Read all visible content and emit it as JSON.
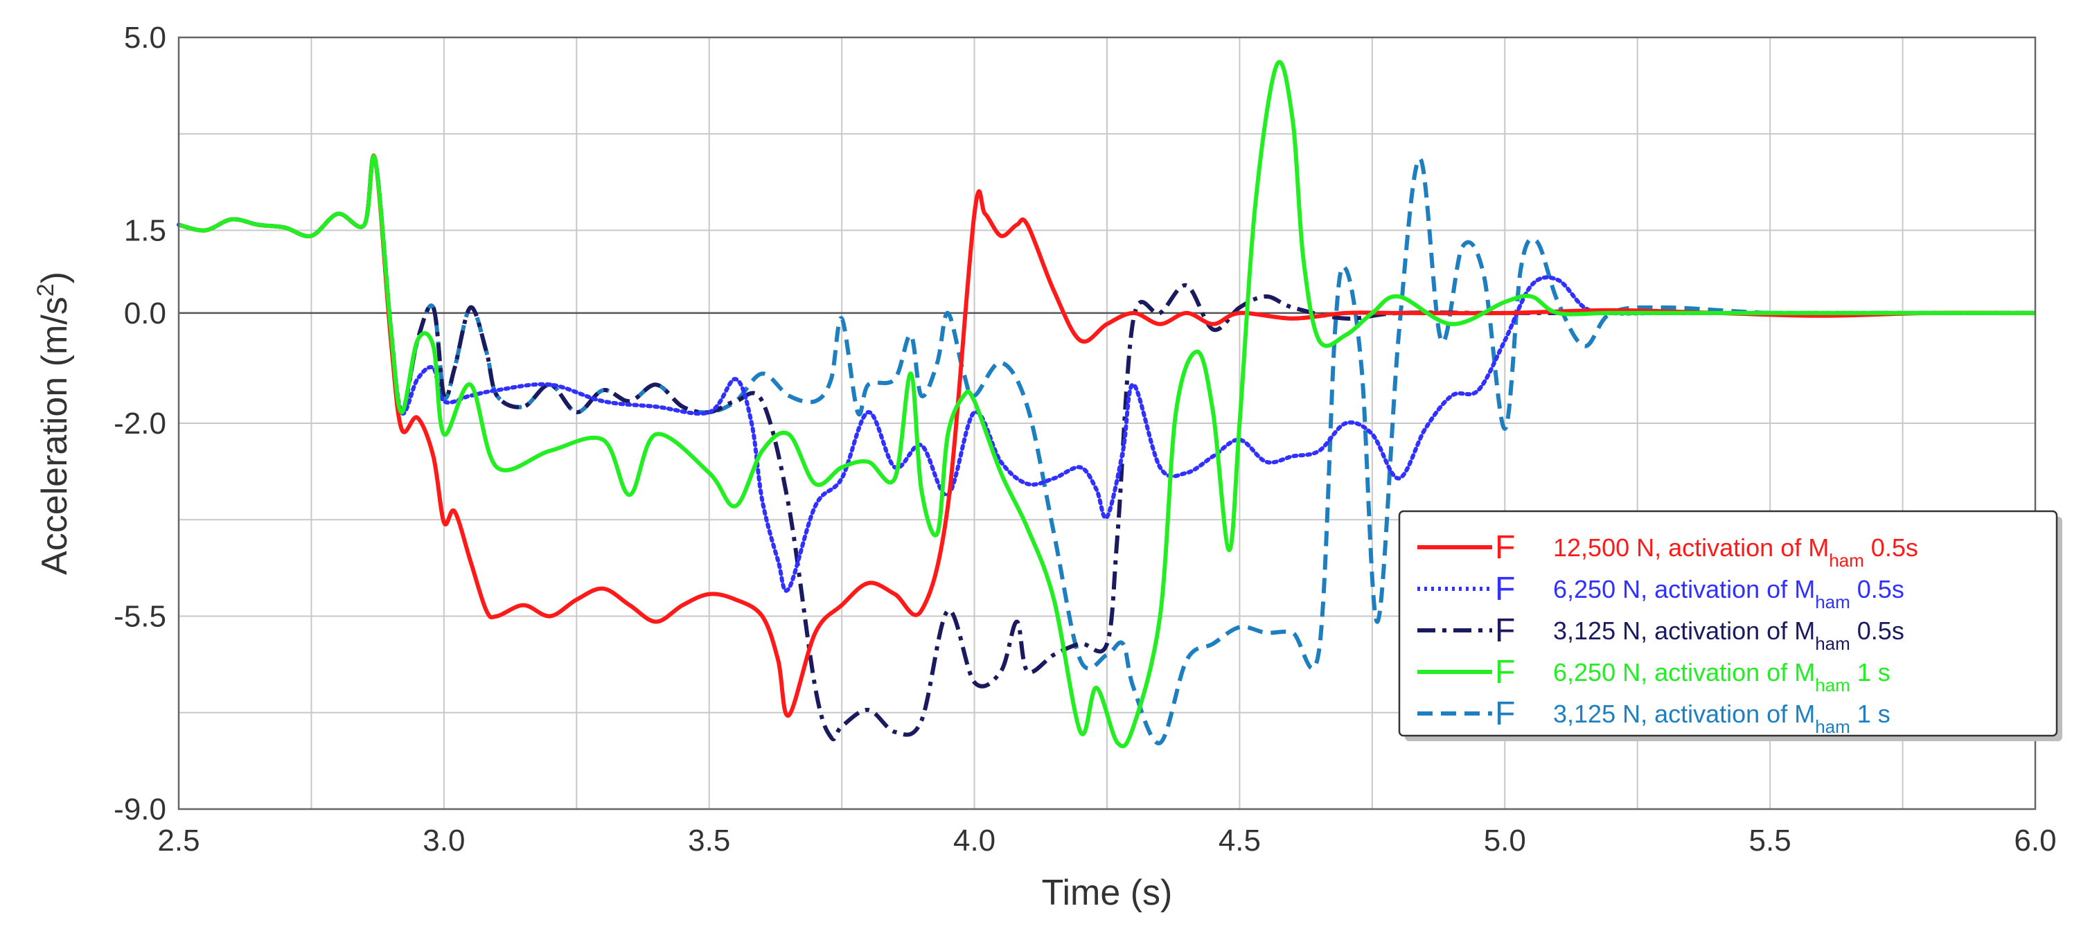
{
  "chart_data": {
    "type": "line",
    "xlabel": "Time (s)",
    "ylabel_main": "Acceleration (m/s",
    "ylabel_sup": "2",
    "ylabel_tail": ")",
    "xlim": [
      2.5,
      6.0
    ],
    "ylim": [
      -9.0,
      5.0
    ],
    "x_ticks": [
      2.5,
      3.0,
      3.5,
      4.0,
      4.5,
      5.0,
      5.5,
      6.0
    ],
    "x_tick_labels": [
      "2.5",
      "3.0",
      "3.5",
      "4.0",
      "4.5",
      "5.0",
      "5.5",
      "6.0"
    ],
    "y_ticks": [
      5.0,
      1.5,
      0.0,
      -2.0,
      -5.5,
      -9.0
    ],
    "y_tick_labels": [
      "5.0",
      "1.5",
      "0.0",
      "-2.0",
      "-5.5",
      "-9.0"
    ],
    "x_gridlines": [
      2.5,
      2.75,
      3.0,
      3.25,
      3.5,
      3.75,
      4.0,
      4.25,
      4.5,
      4.75,
      5.0,
      5.25,
      5.5,
      5.75,
      6.0
    ],
    "y_gridlines": [
      5.0,
      3.25,
      1.5,
      0.0,
      -2.0,
      -3.75,
      -5.5,
      -7.25,
      -9.0
    ],
    "legend_position": "lower-right",
    "series": [
      {
        "name": "F 12,500 N, activation of Mham 0.5s",
        "legend_prefix": "F",
        "legend_text": "12,500 N, activation of M",
        "legend_sub": "ham",
        "legend_suffix": " 0.5s",
        "color": "#ff1a1a",
        "dash": "solid",
        "x": [
          2.5,
          2.55,
          2.6,
          2.65,
          2.7,
          2.75,
          2.8,
          2.85,
          2.87,
          2.9,
          2.92,
          2.95,
          2.98,
          3.0,
          3.02,
          3.05,
          3.08,
          3.1,
          3.15,
          3.2,
          3.25,
          3.3,
          3.35,
          3.4,
          3.45,
          3.5,
          3.55,
          3.6,
          3.63,
          3.65,
          3.7,
          3.75,
          3.8,
          3.85,
          3.9,
          3.95,
          4.0,
          4.02,
          4.05,
          4.08,
          4.1,
          4.15,
          4.2,
          4.25,
          4.3,
          4.35,
          4.4,
          4.45,
          4.5,
          4.6,
          4.7,
          4.8,
          5.0,
          5.2,
          5.4,
          5.6,
          5.8,
          6.0
        ],
        "y": [
          1.6,
          1.5,
          1.7,
          1.6,
          1.55,
          1.4,
          1.8,
          1.6,
          2.8,
          -0.5,
          -2.1,
          -1.9,
          -2.6,
          -3.8,
          -3.6,
          -4.5,
          -5.4,
          -5.5,
          -5.3,
          -5.5,
          -5.2,
          -5.0,
          -5.3,
          -5.6,
          -5.3,
          -5.1,
          -5.2,
          -5.5,
          -6.3,
          -7.3,
          -5.8,
          -5.3,
          -4.9,
          -5.1,
          -5.4,
          -3.5,
          1.8,
          1.8,
          1.4,
          1.6,
          1.6,
          0.4,
          -0.5,
          -0.2,
          0.0,
          -0.2,
          0.0,
          -0.2,
          0.0,
          -0.1,
          0.0,
          0.0,
          0.0,
          0.05,
          0.0,
          -0.05,
          0.0,
          0.0
        ]
      },
      {
        "name": "F 6,250 N, activation of Mham 0.5s",
        "legend_prefix": "F",
        "legend_text": "6,250 N, activation of M",
        "legend_sub": "ham",
        "legend_suffix": " 0.5s",
        "color": "#3030ff",
        "dash": "dotted",
        "x": [
          2.5,
          2.55,
          2.6,
          2.65,
          2.7,
          2.75,
          2.8,
          2.85,
          2.87,
          2.9,
          2.92,
          2.95,
          2.98,
          3.0,
          3.05,
          3.1,
          3.2,
          3.3,
          3.4,
          3.5,
          3.55,
          3.58,
          3.6,
          3.63,
          3.65,
          3.7,
          3.75,
          3.8,
          3.85,
          3.9,
          3.95,
          4.0,
          4.05,
          4.1,
          4.15,
          4.2,
          4.23,
          4.25,
          4.28,
          4.3,
          4.35,
          4.4,
          4.45,
          4.5,
          4.55,
          4.6,
          4.65,
          4.7,
          4.75,
          4.8,
          4.85,
          4.9,
          4.95,
          5.0,
          5.05,
          5.1,
          5.15,
          5.2,
          5.3,
          5.5,
          5.7,
          5.9,
          6.0
        ],
        "y": [
          1.6,
          1.5,
          1.7,
          1.6,
          1.55,
          1.4,
          1.8,
          1.6,
          2.8,
          -0.3,
          -1.8,
          -1.2,
          -1.0,
          -1.6,
          -1.5,
          -1.4,
          -1.3,
          -1.6,
          -1.7,
          -1.8,
          -1.2,
          -2.0,
          -3.4,
          -4.5,
          -5.0,
          -3.5,
          -3.0,
          -1.8,
          -2.8,
          -2.4,
          -3.3,
          -1.8,
          -2.7,
          -3.1,
          -3.0,
          -2.8,
          -3.2,
          -3.7,
          -2.5,
          -1.3,
          -2.8,
          -2.9,
          -2.6,
          -2.3,
          -2.7,
          -2.6,
          -2.5,
          -2.0,
          -2.2,
          -3.0,
          -2.1,
          -1.5,
          -1.4,
          -0.5,
          0.5,
          0.6,
          0.1,
          0.0,
          0.0,
          0.0,
          0.0,
          0.0,
          0.0
        ]
      },
      {
        "name": "F 3,125 N, activation of Mham 0.5s",
        "legend_prefix": "F",
        "legend_text": "3,125 N, activation of M",
        "legend_sub": "ham",
        "legend_suffix": " 0.5s",
        "color": "#1a1a5e",
        "dash": "dashdot",
        "x": [
          2.5,
          2.55,
          2.6,
          2.65,
          2.7,
          2.75,
          2.8,
          2.85,
          2.87,
          2.9,
          2.92,
          2.95,
          2.98,
          3.0,
          3.02,
          3.05,
          3.08,
          3.1,
          3.15,
          3.2,
          3.25,
          3.3,
          3.35,
          3.4,
          3.45,
          3.5,
          3.55,
          3.6,
          3.65,
          3.7,
          3.73,
          3.75,
          3.8,
          3.85,
          3.9,
          3.95,
          4.0,
          4.05,
          4.08,
          4.1,
          4.15,
          4.2,
          4.25,
          4.27,
          4.3,
          4.35,
          4.4,
          4.45,
          4.5,
          4.55,
          4.6,
          4.7,
          4.8,
          5.0,
          5.2,
          5.4,
          5.6,
          5.8,
          6.0
        ],
        "y": [
          1.6,
          1.5,
          1.7,
          1.6,
          1.55,
          1.4,
          1.8,
          1.6,
          2.8,
          -0.3,
          -1.8,
          -0.5,
          0.1,
          -1.5,
          -1.0,
          0.1,
          -0.7,
          -1.5,
          -1.7,
          -1.3,
          -1.8,
          -1.4,
          -1.6,
          -1.3,
          -1.7,
          -1.8,
          -1.6,
          -1.6,
          -3.5,
          -6.8,
          -7.7,
          -7.5,
          -7.2,
          -7.6,
          -7.4,
          -5.4,
          -6.7,
          -6.5,
          -5.6,
          -6.5,
          -6.2,
          -6.0,
          -6.0,
          -4.0,
          -0.1,
          0.0,
          0.5,
          -0.3,
          0.1,
          0.3,
          0.1,
          -0.1,
          0.0,
          0.0,
          0.0,
          0.0,
          0.0,
          0.0,
          0.0
        ]
      },
      {
        "name": "F 6,250 N, activation of Mham 1 s",
        "legend_prefix": "F",
        "legend_text": "6,250 N, activation of M",
        "legend_sub": "ham",
        "legend_suffix": "  1 s",
        "color": "#22ee22",
        "dash": "solid",
        "x": [
          2.5,
          2.55,
          2.6,
          2.65,
          2.7,
          2.75,
          2.8,
          2.85,
          2.87,
          2.9,
          2.92,
          2.95,
          2.98,
          3.0,
          3.05,
          3.1,
          3.2,
          3.3,
          3.35,
          3.4,
          3.5,
          3.55,
          3.6,
          3.65,
          3.7,
          3.75,
          3.8,
          3.85,
          3.88,
          3.9,
          3.93,
          3.95,
          3.98,
          4.0,
          4.05,
          4.1,
          4.15,
          4.2,
          4.23,
          4.27,
          4.3,
          4.35,
          4.38,
          4.42,
          4.45,
          4.48,
          4.5,
          4.53,
          4.57,
          4.6,
          4.62,
          4.65,
          4.7,
          4.75,
          4.8,
          4.9,
          5.0,
          5.05,
          5.1,
          5.2,
          5.4,
          5.6,
          5.8,
          6.0
        ],
        "y": [
          1.6,
          1.5,
          1.7,
          1.6,
          1.55,
          1.4,
          1.8,
          1.6,
          2.8,
          -0.3,
          -1.8,
          -0.5,
          -0.6,
          -2.2,
          -1.3,
          -2.8,
          -2.5,
          -2.3,
          -3.3,
          -2.2,
          -2.9,
          -3.5,
          -2.5,
          -2.2,
          -3.1,
          -2.8,
          -2.7,
          -3.0,
          -1.1,
          -3.2,
          -4.0,
          -2.2,
          -1.5,
          -1.6,
          -2.9,
          -3.9,
          -5.2,
          -7.6,
          -6.8,
          -7.8,
          -7.5,
          -5.5,
          -1.8,
          -0.7,
          -1.8,
          -4.3,
          -2.0,
          2.0,
          4.5,
          3.5,
          1.0,
          -0.5,
          -0.4,
          0.0,
          0.3,
          -0.2,
          0.2,
          0.3,
          0.0,
          0.0,
          0.0,
          0.0,
          0.0,
          0.0
        ]
      },
      {
        "name": "F 3,125 N, activation of Mham 1 s",
        "legend_prefix": "F",
        "legend_text": "3,125 N, activation of M",
        "legend_sub": "ham",
        "legend_suffix": "  1 s",
        "color": "#1e7fc0",
        "dash": "dashed",
        "x": [
          2.5,
          2.55,
          2.6,
          2.65,
          2.7,
          2.75,
          2.8,
          2.85,
          2.87,
          2.9,
          2.92,
          2.95,
          2.98,
          3.0,
          3.02,
          3.05,
          3.08,
          3.1,
          3.15,
          3.2,
          3.25,
          3.3,
          3.35,
          3.4,
          3.45,
          3.5,
          3.55,
          3.6,
          3.65,
          3.7,
          3.73,
          3.75,
          3.78,
          3.8,
          3.85,
          3.88,
          3.9,
          3.93,
          3.95,
          3.98,
          4.0,
          4.05,
          4.1,
          4.15,
          4.2,
          4.25,
          4.28,
          4.3,
          4.35,
          4.4,
          4.45,
          4.5,
          4.55,
          4.6,
          4.65,
          4.68,
          4.7,
          4.73,
          4.76,
          4.8,
          4.84,
          4.88,
          4.92,
          4.96,
          5.0,
          5.03,
          5.06,
          5.1,
          5.15,
          5.2,
          5.3,
          5.5,
          5.7,
          5.9,
          6.0
        ],
        "y": [
          1.6,
          1.5,
          1.7,
          1.6,
          1.55,
          1.4,
          1.8,
          1.6,
          2.8,
          -0.3,
          -1.8,
          -0.5,
          0.1,
          -1.5,
          -1.0,
          0.1,
          -0.7,
          -1.5,
          -1.7,
          -1.3,
          -1.8,
          -1.4,
          -1.6,
          -1.3,
          -1.7,
          -1.8,
          -1.6,
          -1.1,
          -1.5,
          -1.6,
          -1.2,
          -0.1,
          -1.8,
          -1.3,
          -1.2,
          -0.4,
          -1.5,
          -0.9,
          0.0,
          -1.1,
          -1.5,
          -0.9,
          -1.7,
          -4.0,
          -6.3,
          -6.2,
          -6.0,
          -6.8,
          -7.8,
          -6.3,
          -6.0,
          -5.7,
          -5.8,
          -5.8,
          -6.1,
          -0.3,
          0.8,
          -1.0,
          -5.6,
          -0.4,
          2.8,
          -0.5,
          1.2,
          0.7,
          -2.1,
          0.8,
          1.3,
          0.2,
          -0.6,
          0.0,
          0.1,
          0.0,
          0.0,
          0.0,
          0.0
        ]
      }
    ]
  }
}
